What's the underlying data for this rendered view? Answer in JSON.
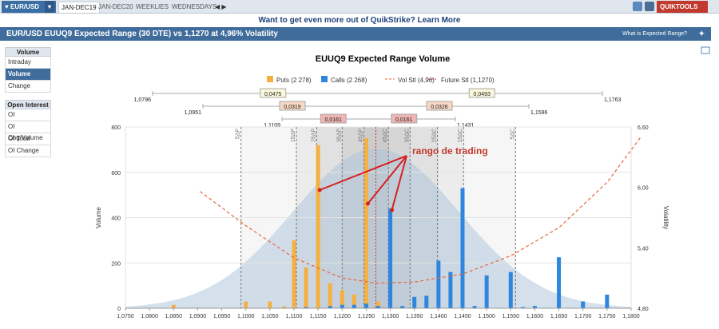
{
  "topbar": {
    "instrument": "EUR/USD",
    "tabs": [
      "JAN-DEC19",
      "JAN-DEC20",
      "WEEKLIES",
      "WEDNESDAYS"
    ],
    "active_tab": 0,
    "quiktools": "QUIKTOOLS"
  },
  "promo": "Want to get even more out of QuikStrike? Learn More",
  "titlebar": {
    "title": "EUR/USD EUUQ9 Expected Range (30 DTE) vs 1,1270 at 4,96% Volatility",
    "help": "What is Expected Range?"
  },
  "sidebar": {
    "volume_header": "Volume",
    "volume_items": [
      "Intraday",
      "Volume",
      "Change"
    ],
    "selected": "Volume",
    "oi_header": "Open Interest",
    "oi_items": [
      "OI",
      "OI Chg/Volume",
      "OI Total",
      "OI Change"
    ]
  },
  "chart_data": {
    "type": "bar",
    "title": "EUUQ9 Expected Range Volume",
    "legend": [
      "Puts (2 278)",
      "Calls (2 268)",
      "Vol Stl (4,96)",
      "Future Stl (1,1270)"
    ],
    "ylabel": "Volume",
    "y2label": "Volatility",
    "ylim": [
      0,
      800
    ],
    "y2lim": [
      4.8,
      6.6
    ],
    "yticks": [
      "800",
      "600",
      "400",
      "200",
      "0"
    ],
    "y2ticks": [
      "6,60",
      "6,00",
      "5,40",
      "4,80"
    ],
    "xlim": [
      1.075,
      1.18
    ],
    "xticks": [
      "1,0750",
      "1,0800",
      "1,0850",
      "1,0900",
      "1,0950",
      "1,1000",
      "1,1050",
      "1,1100",
      "1,1150",
      "1,1200",
      "1,1250",
      "1,1300",
      "1,1350",
      "1,1400",
      "1,1450",
      "1,1500",
      "1,1550",
      "1,1600",
      "1,1650",
      "1,1700",
      "1,1750",
      "1,1800"
    ],
    "puts": [
      [
        1.085,
        15
      ],
      [
        1.09,
        3
      ],
      [
        1.095,
        2
      ],
      [
        1.1,
        30
      ],
      [
        1.105,
        30
      ],
      [
        1.108,
        8
      ],
      [
        1.11,
        300
      ],
      [
        1.1125,
        180
      ],
      [
        1.115,
        720
      ],
      [
        1.1175,
        110
      ],
      [
        1.12,
        80
      ],
      [
        1.1225,
        60
      ],
      [
        1.125,
        750
      ],
      [
        1.1275,
        30
      ],
      [
        1.13,
        5
      ]
    ],
    "calls": [
      [
        1.1125,
        5
      ],
      [
        1.1175,
        10
      ],
      [
        1.12,
        15
      ],
      [
        1.1225,
        15
      ],
      [
        1.125,
        20
      ],
      [
        1.1275,
        10
      ],
      [
        1.13,
        440
      ],
      [
        1.1325,
        10
      ],
      [
        1.135,
        50
      ],
      [
        1.1375,
        55
      ],
      [
        1.14,
        210
      ],
      [
        1.1425,
        160
      ],
      [
        1.145,
        530
      ],
      [
        1.1475,
        10
      ],
      [
        1.15,
        145
      ],
      [
        1.155,
        160
      ],
      [
        1.16,
        10
      ],
      [
        1.165,
        225
      ],
      [
        1.17,
        30
      ],
      [
        1.175,
        60
      ],
      [
        1.1575,
        5
      ]
    ],
    "future_settle": 1.127,
    "vol_smile": [
      [
        1.0905,
        5.96
      ],
      [
        1.1,
        5.62
      ],
      [
        1.11,
        5.3
      ],
      [
        1.12,
        5.1
      ],
      [
        1.127,
        5.05
      ],
      [
        1.135,
        5.06
      ],
      [
        1.145,
        5.14
      ],
      [
        1.155,
        5.32
      ],
      [
        1.165,
        5.6
      ],
      [
        1.175,
        6.05
      ],
      [
        1.182,
        6.5
      ]
    ],
    "strike_markers": [
      {
        "label": "5ΔP",
        "x": 1.099
      },
      {
        "label": "15ΔP",
        "x": 1.1105
      },
      {
        "label": "25ΔP",
        "x": 1.1147
      },
      {
        "label": "35ΔP",
        "x": 1.12
      },
      {
        "label": "45ΔP",
        "x": 1.1245
      },
      {
        "label": "45ΔC",
        "x": 1.1296
      },
      {
        "label": "35ΔC",
        "x": 1.1341
      },
      {
        "label": "25ΔC",
        "x": 1.1398
      },
      {
        "label": "15ΔC",
        "x": 1.1452
      },
      {
        "label": "5ΔC",
        "x": 1.156
      }
    ],
    "ranges": [
      {
        "lo": "1,0796",
        "hi": "1,1763",
        "width": "0,0475",
        "width_r": "0,0493",
        "color": "#fbf7dc"
      },
      {
        "lo": "1,0951",
        "hi": "1,1596",
        "width": "0,0319",
        "width_r": "0,0326",
        "color": "#f6d7c2"
      },
      {
        "lo": "1,1109",
        "hi": "1,1431",
        "width": "0,0161",
        "width_r": "0,0161",
        "color": "#efb4b4"
      }
    ],
    "annotation": "rango de trading"
  }
}
